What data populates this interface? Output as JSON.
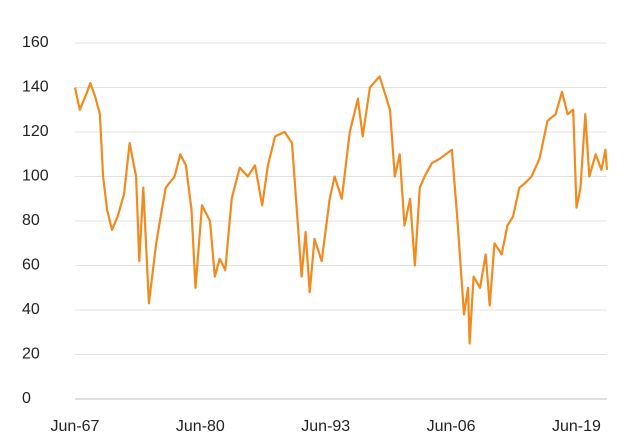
{
  "chart_data": {
    "type": "line",
    "x": [
      "1967-06",
      "1967-12",
      "1968-08",
      "1969-01",
      "1969-07",
      "1970-01",
      "1970-05",
      "1970-10",
      "1971-04",
      "1971-11",
      "1972-07",
      "1973-02",
      "1973-10",
      "1974-02",
      "1974-07",
      "1975-02",
      "1975-11",
      "1976-06",
      "1976-11",
      "1977-10",
      "1978-05",
      "1978-12",
      "1979-07",
      "1979-12",
      "1980-08",
      "1981-06",
      "1981-12",
      "1982-06",
      "1983-01",
      "1983-09",
      "1984-07",
      "1985-05",
      "1986-02",
      "1986-11",
      "1987-06",
      "1988-03",
      "1989-03",
      "1989-12",
      "1990-07",
      "1990-12",
      "1991-05",
      "1991-10",
      "1992-04",
      "1993-01",
      "1993-11",
      "1994-05",
      "1995-02",
      "1995-12",
      "1996-10",
      "1997-04",
      "1998-01",
      "1999-01",
      "2000-02",
      "2000-08",
      "2001-02",
      "2001-08",
      "2002-03",
      "2002-09",
      "2003-03",
      "2003-09",
      "2004-06",
      "2005-04",
      "2006-07",
      "2007-02",
      "2007-10",
      "2008-03",
      "2008-05",
      "2008-10",
      "2009-06",
      "2010-01",
      "2010-06",
      "2010-12",
      "2011-09",
      "2012-04",
      "2012-11",
      "2013-07",
      "2014-02",
      "2014-10",
      "2015-08",
      "2016-06",
      "2017-04",
      "2017-12",
      "2018-07",
      "2019-02",
      "2019-06",
      "2019-11",
      "2020-05",
      "2020-10",
      "2021-06",
      "2022-01",
      "2022-06",
      "2022-08"
    ],
    "series": [
      {
        "color": "#f28a1e",
        "values": [
          140,
          130,
          137,
          142,
          136,
          128,
          100,
          85,
          76,
          82,
          92,
          115,
          100,
          62,
          95,
          43,
          70,
          85,
          95,
          100,
          110,
          105,
          85,
          50,
          87,
          80,
          55,
          63,
          58,
          90,
          104,
          100,
          105,
          87,
          105,
          118,
          120,
          115,
          80,
          55,
          75,
          48,
          72,
          62,
          90,
          100,
          90,
          120,
          135,
          118,
          140,
          145,
          130,
          100,
          110,
          78,
          90,
          60,
          95,
          100,
          106,
          108,
          112,
          80,
          38,
          50,
          25,
          55,
          50,
          65,
          42,
          70,
          65,
          78,
          82,
          95,
          97,
          100,
          108,
          125,
          128,
          138,
          128,
          130,
          86,
          95,
          128,
          100,
          110,
          103,
          112,
          103
        ]
      }
    ],
    "xlim": [
      "1967-06",
      "2022-08"
    ],
    "xticks": [
      {
        "value": "1967-06",
        "label": "Jun-67"
      },
      {
        "value": "1980-06",
        "label": "Jun-80"
      },
      {
        "value": "1993-06",
        "label": "Jun-93"
      },
      {
        "value": "2006-06",
        "label": "Jun-06"
      },
      {
        "value": "2019-06",
        "label": "Jun-19"
      }
    ],
    "ylim": [
      0,
      160
    ],
    "yticks": [
      0,
      20,
      40,
      60,
      80,
      100,
      120,
      140,
      160
    ],
    "grid": true
  }
}
